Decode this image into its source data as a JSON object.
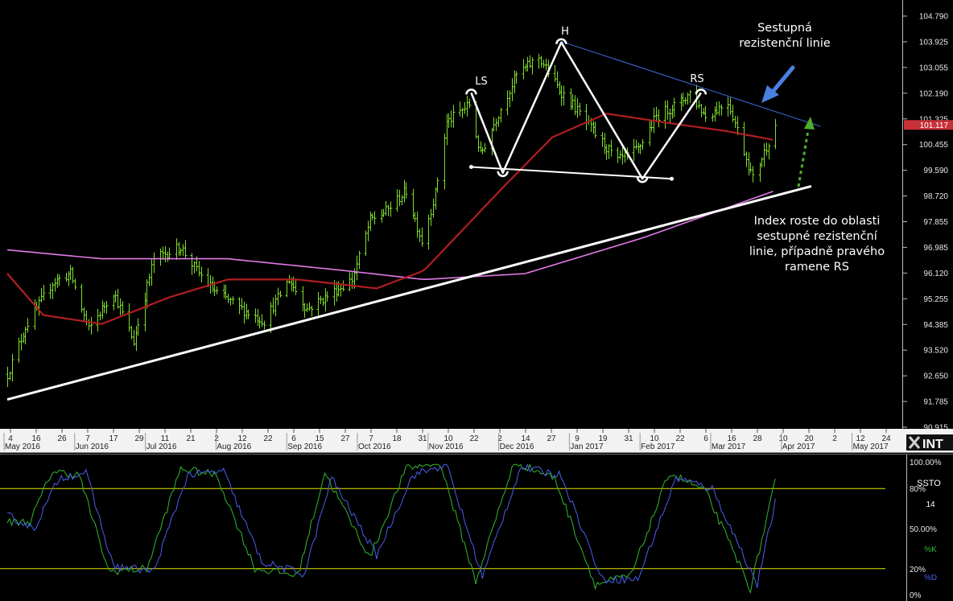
{
  "colors": {
    "background": "#000000",
    "price_bars": "#7fdd2a",
    "ma_short": "#b01e22",
    "ma_long": "#e07ae8",
    "resistance_line": "#3f6fe0",
    "support_line": "#ffffff",
    "pattern_lines": "#ffffff",
    "stoch_k": "#30b830",
    "stoch_d": "#4a5ef0",
    "stoch_levels": "#e6e600",
    "current_price_tag": "#c8303a"
  },
  "annotations": {
    "resistance_label": [
      "Sestupná",
      "rezistenční linie"
    ],
    "index_note": [
      "Index roste do oblasti",
      "sestupné rezistenční",
      "linie, případně pravého",
      "ramene RS"
    ],
    "ls": "LS",
    "h": "H",
    "rs": "RS"
  },
  "logo_text": "INT",
  "chart_data": [
    {
      "type": "ohlc",
      "price_axis_ticks": [
        "104.790",
        "103.925",
        "103.055",
        "102.190",
        "101.325",
        "100.455",
        "99.590",
        "98.720",
        "97.855",
        "96.985",
        "96.120",
        "95.255",
        "94.385",
        "93.520",
        "92.650",
        "91.785",
        "90.915"
      ],
      "ylim": [
        90.915,
        104.79
      ],
      "last_price": "101.117",
      "x_day_ticks": [
        "4",
        "16",
        "26",
        "7",
        "17",
        "29",
        "11",
        "21",
        "2",
        "12",
        "22",
        "6",
        "15",
        "27",
        "7",
        "18",
        "31",
        "10",
        "22",
        "2",
        "14",
        "27",
        "9",
        "19",
        "31",
        "10",
        "22",
        "6",
        "16",
        "28",
        "10",
        "20",
        "2",
        "12",
        "24"
      ],
      "x_month_ticks": [
        "May 2016",
        "Jun 2016",
        "Jul 2016",
        "Aug 2016",
        "Sep 2016",
        "Oct 2016",
        "Nov 2016",
        "Dec 2016",
        "Jan 2017",
        "Feb 2017",
        "Mar 2017",
        "Apr 2017",
        "May 2017"
      ],
      "price_keypoints": {
        "dates": [
          "2016-05-04",
          "2016-05-12",
          "2016-05-24",
          "2016-06-01",
          "2016-06-09",
          "2016-06-20",
          "2016-06-29",
          "2016-07-08",
          "2016-07-20",
          "2016-07-27",
          "2016-08-04",
          "2016-08-16",
          "2016-08-26",
          "2016-09-06",
          "2016-09-14",
          "2016-09-22",
          "2016-10-04",
          "2016-10-12",
          "2016-10-19",
          "2016-10-28",
          "2016-11-04",
          "2016-11-10",
          "2016-11-15",
          "2016-11-25",
          "2016-11-30",
          "2016-12-08",
          "2016-12-16",
          "2016-12-26",
          "2017-01-04",
          "2017-01-10",
          "2017-01-20",
          "2017-01-30",
          "2017-02-08",
          "2017-02-16",
          "2017-02-27",
          "2017-03-03",
          "2017-03-10",
          "2017-03-20",
          "2017-03-31",
          "2017-04-10"
        ],
        "close": [
          92.7,
          94.3,
          95.8,
          96.1,
          94.2,
          95.5,
          93.8,
          96.6,
          97.0,
          96.2,
          95.5,
          94.9,
          94.5,
          95.9,
          94.9,
          95.3,
          95.9,
          97.9,
          98.2,
          98.9,
          97.2,
          98.8,
          101.2,
          101.8,
          100.1,
          101.5,
          102.8,
          103.4,
          102.3,
          101.8,
          100.8,
          99.9,
          100.3,
          101.4,
          101.9,
          102.2,
          101.4,
          101.9,
          99.3,
          101.1
        ]
      },
      "ma_short": {
        "dates": [
          "2016-05-04",
          "2016-05-20",
          "2016-06-15",
          "2016-07-15",
          "2016-08-10",
          "2016-09-10",
          "2016-10-15",
          "2016-11-05",
          "2016-12-10",
          "2017-01-01",
          "2017-01-25",
          "2017-02-20",
          "2017-03-20",
          "2017-04-10"
        ],
        "values": [
          96.1,
          94.7,
          94.4,
          95.3,
          95.9,
          95.9,
          95.6,
          96.2,
          99.0,
          100.7,
          101.5,
          101.2,
          100.9,
          100.6
        ]
      },
      "ma_long": {
        "dates": [
          "2016-05-04",
          "2016-06-15",
          "2016-08-10",
          "2016-10-01",
          "2016-11-05",
          "2016-12-20",
          "2017-02-10",
          "2017-04-10"
        ],
        "values": [
          96.9,
          96.6,
          96.6,
          96.2,
          95.9,
          96.1,
          97.3,
          98.9
        ]
      },
      "support_trendline": {
        "dates": [
          "2016-05-04",
          "2017-04-26"
        ],
        "values": [
          91.85,
          99.05
        ]
      },
      "resistance_trendline": {
        "dates": [
          "2017-01-05",
          "2017-04-30"
        ],
        "values": [
          103.93,
          101.07
        ]
      },
      "pattern": {
        "ls": {
          "date": "2016-11-26",
          "value": 102.2
        },
        "left_trough": {
          "date": "2016-12-10",
          "value": 99.5
        },
        "h": {
          "date": "2017-01-05",
          "value": 103.9
        },
        "right_trough": {
          "date": "2017-02-10",
          "value": 99.3
        },
        "rs": {
          "date": "2017-03-08",
          "value": 102.2
        },
        "neckline": {
          "dates": [
            "2016-11-26",
            "2017-02-23"
          ],
          "values": [
            99.7,
            99.3
          ]
        }
      }
    },
    {
      "type": "line",
      "title": "SSTO",
      "period": "14",
      "y_ticks": [
        "100.00%",
        "80%",
        "50.00%",
        "20%",
        "0%"
      ],
      "ylim": [
        0,
        100
      ],
      "levels": [
        80,
        20
      ],
      "series": [
        {
          "name": "%K",
          "dates": [
            "2016-05-04",
            "2016-05-14",
            "2016-05-24",
            "2016-06-05",
            "2016-06-18",
            "2016-07-05",
            "2016-07-20",
            "2016-08-05",
            "2016-08-22",
            "2016-09-10",
            "2016-09-22",
            "2016-10-12",
            "2016-10-28",
            "2016-11-12",
            "2016-11-28",
            "2016-12-15",
            "2017-01-02",
            "2017-01-20",
            "2017-02-05",
            "2017-02-22",
            "2017-03-10",
            "2017-03-30",
            "2017-04-10"
          ],
          "values": [
            55,
            55,
            93,
            90,
            18,
            20,
            95,
            90,
            20,
            15,
            92,
            28,
            95,
            100,
            10,
            100,
            88,
            8,
            15,
            92,
            78,
            5,
            85
          ]
        },
        {
          "name": "%D",
          "dates": [
            "2016-05-04",
            "2016-05-16",
            "2016-05-27",
            "2016-06-08",
            "2016-06-20",
            "2016-07-08",
            "2016-07-23",
            "2016-08-08",
            "2016-08-25",
            "2016-09-13",
            "2016-09-25",
            "2016-10-15",
            "2016-10-31",
            "2016-11-15",
            "2016-12-01",
            "2016-12-18",
            "2017-01-05",
            "2017-01-23",
            "2017-02-08",
            "2017-02-25",
            "2017-03-13",
            "2017-04-02",
            "2017-04-10"
          ],
          "values": [
            60,
            50,
            88,
            92,
            22,
            18,
            90,
            93,
            25,
            16,
            88,
            30,
            90,
            98,
            14,
            96,
            90,
            12,
            12,
            88,
            80,
            8,
            70
          ]
        }
      ]
    }
  ]
}
